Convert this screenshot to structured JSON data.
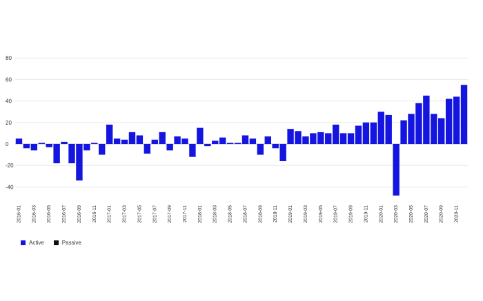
{
  "chart_data": {
    "type": "bar",
    "stacked": true,
    "grid": true,
    "legend_position": "bottom-left",
    "ylim": [
      -50,
      85
    ],
    "yticks": [
      -40,
      -20,
      0,
      20,
      40,
      60,
      80
    ],
    "categories": [
      "2016-01",
      "2016-02",
      "2016-03",
      "2016-04",
      "2016-05",
      "2016-06",
      "2016-07",
      "2016-08",
      "2016-09",
      "2016-10",
      "2016-11",
      "2016-12",
      "2017-01",
      "2017-02",
      "2017-03",
      "2017-04",
      "2017-05",
      "2017-06",
      "2017-07",
      "2017-08",
      "2017-09",
      "2017-10",
      "2017-11",
      "2017-12",
      "2018-01",
      "2018-02",
      "2018-03",
      "2018-04",
      "2018-05",
      "2018-06",
      "2018-07",
      "2018-08",
      "2018-09",
      "2018-10",
      "2018-11",
      "2018-12",
      "2019-01",
      "2019-02",
      "2019-03",
      "2019-04",
      "2019-05",
      "2019-06",
      "2019-07",
      "2019-08",
      "2019-09",
      "2019-10",
      "2019-11",
      "2019-12",
      "2020-01",
      "2020-02",
      "2020-03",
      "2020-04",
      "2020-05",
      "2020-06",
      "2020-07",
      "2020-08",
      "2020-09",
      "2020-10",
      "2020-11",
      "2020-12"
    ],
    "xtick_labels": [
      "2016-01",
      "2016-03",
      "2016-05",
      "2016-07",
      "2016-09",
      "2016-11",
      "2017-01",
      "2017-03",
      "2017-05",
      "2017-07",
      "2017-09",
      "2017-11",
      "2018-01",
      "2018-03",
      "2018-05",
      "2018-07",
      "2018-09",
      "2018-11",
      "2019-01",
      "2019-03",
      "2019-05",
      "2019-07",
      "2019-09",
      "2019-11",
      "2020-01",
      "2020-03",
      "2020-05",
      "2020-07",
      "2020-09",
      "2020-11"
    ],
    "series": [
      {
        "name": "Active",
        "color": "#1515e0",
        "values": [
          5,
          -4,
          -6,
          1,
          -3,
          -18,
          2,
          -18,
          -34,
          -6,
          1,
          -10,
          18,
          5,
          4,
          11,
          8,
          -9,
          4,
          11,
          -6,
          7,
          5,
          -12,
          15,
          -2,
          3,
          6,
          1,
          1,
          8,
          5,
          -10,
          7,
          -4,
          -16,
          14,
          12,
          7,
          10,
          11,
          10,
          18,
          10,
          10,
          17,
          20,
          20,
          30,
          27,
          -48,
          22,
          28,
          38,
          45,
          28,
          24,
          42,
          44,
          55
        ]
      },
      {
        "name": "Passive",
        "color": "#111111",
        "values": [
          0,
          0,
          0,
          0,
          0,
          0,
          0,
          0,
          0,
          0,
          0,
          0,
          0,
          0,
          0,
          0,
          0,
          0,
          0,
          0,
          0,
          0,
          0,
          0,
          0,
          0,
          0,
          0,
          0,
          0,
          0,
          0,
          0,
          0,
          0,
          0,
          0,
          0,
          0,
          0,
          0,
          0,
          0,
          0,
          0,
          0,
          0,
          0,
          0,
          0,
          0,
          0,
          0,
          0,
          0,
          0,
          0,
          0,
          0,
          0
        ]
      }
    ]
  },
  "legend": {
    "active_label": "Active",
    "passive_label": "Passive"
  }
}
